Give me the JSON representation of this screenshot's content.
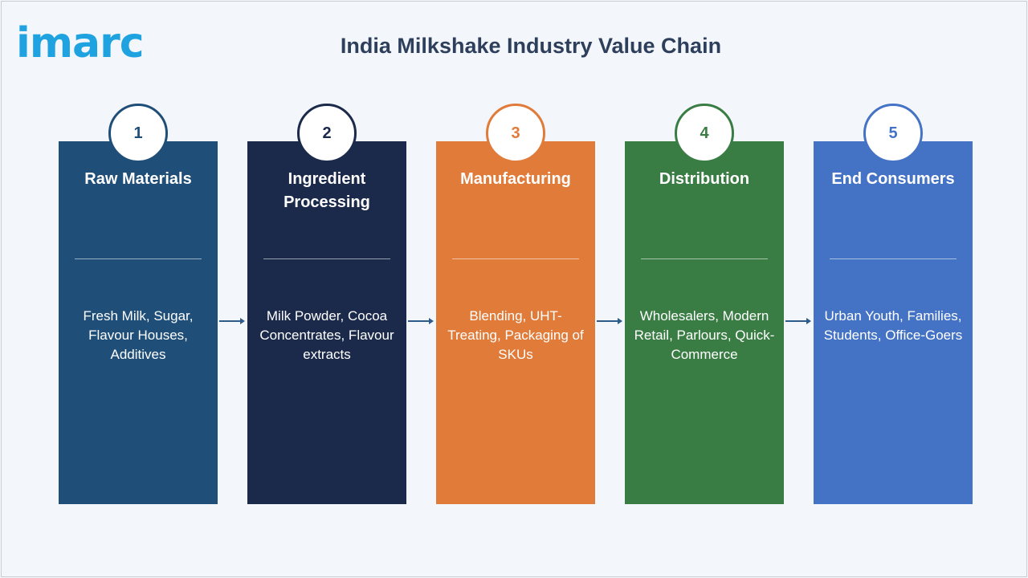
{
  "brand": {
    "logo_text": "imarc",
    "color": "#1fa3e0"
  },
  "title": "India Milkshake Industry Value Chain",
  "stages": [
    {
      "number": "1",
      "title": "Raw Materials",
      "description": "Fresh Milk, Sugar, Flavour Houses, Additives",
      "color": "#1f4e79"
    },
    {
      "number": "2",
      "title": "Ingredient Processing",
      "description": "Milk Powder, Cocoa Concentrates, Flavour extracts",
      "color": "#1b2a4a"
    },
    {
      "number": "3",
      "title": "Manufacturing",
      "description": "Blending, UHT-Treating, Packaging of SKUs",
      "color": "#e07b39"
    },
    {
      "number": "4",
      "title": "Distribution",
      "description": "Wholesalers, Modern Retail, Parlours, Quick-Commerce",
      "color": "#3a7d44"
    },
    {
      "number": "5",
      "title": "End Consumers",
      "description": "Urban Youth, Families, Students, Office-Goers",
      "color": "#4472c4"
    }
  ],
  "connector_icon": "arrow-right-icon"
}
